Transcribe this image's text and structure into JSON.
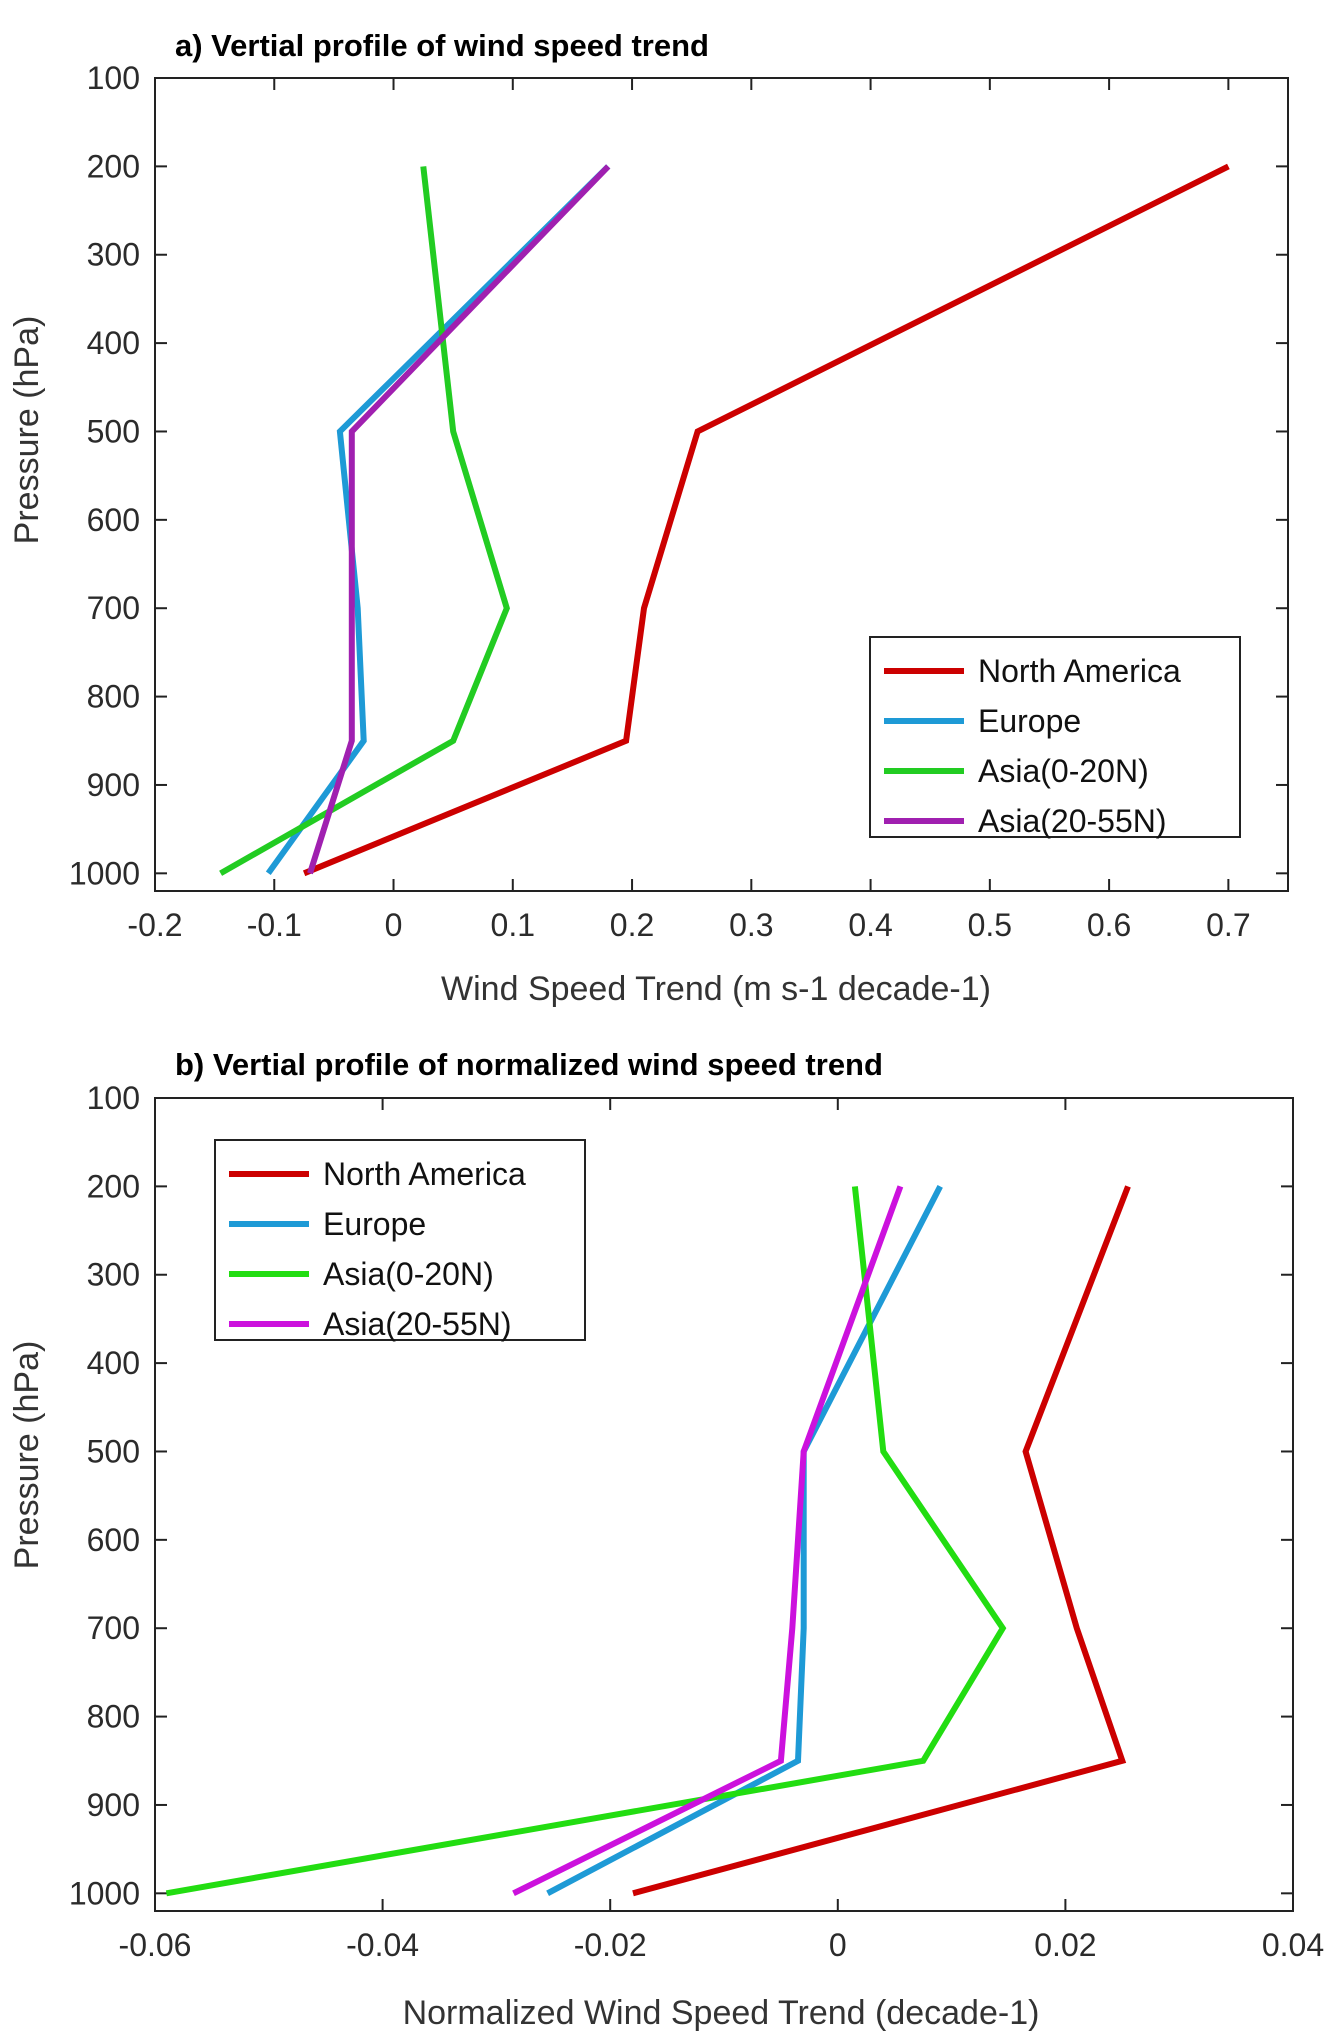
{
  "chart_data": [
    {
      "type": "line",
      "title": "a) Vertial profile of wind speed trend",
      "xlabel": "Wind Speed Trend (m s-1 decade-1)",
      "ylabel": "Pressure (hPa)",
      "xlim": [
        -0.2,
        0.75
      ],
      "ylim": [
        100,
        1020
      ],
      "y_reversed": true,
      "xticks": [
        -0.2,
        -0.1,
        0,
        0.1,
        0.2,
        0.3,
        0.4,
        0.5,
        0.6,
        0.7
      ],
      "xtick_labels": [
        "-0.2",
        "-0.1",
        "0",
        "0.1",
        "0.2",
        "0.3",
        "0.4",
        "0.5",
        "0.6",
        "0.7"
      ],
      "yticks": [
        100,
        200,
        300,
        400,
        500,
        600,
        700,
        800,
        900,
        1000
      ],
      "ytick_labels": [
        "100",
        "200",
        "300",
        "400",
        "500",
        "600",
        "700",
        "800",
        "900",
        "1000"
      ],
      "legend_position": "bottom-right",
      "grid": false,
      "levels": [
        1000,
        850,
        700,
        500,
        200
      ],
      "series": [
        {
          "name": "North America",
          "color": "#cc0000",
          "x": [
            -0.075,
            0.195,
            0.21,
            0.255,
            0.7
          ]
        },
        {
          "name": "Europe",
          "color": "#1e9ad6",
          "x": [
            -0.105,
            -0.025,
            -0.03,
            -0.045,
            0.18
          ]
        },
        {
          "name": "Asia(0-20N)",
          "color": "#22cc22",
          "x": [
            -0.145,
            0.05,
            0.095,
            0.05,
            0.025
          ]
        },
        {
          "name": "Asia(20-55N)",
          "color": "#a020b0",
          "x": [
            -0.07,
            -0.035,
            -0.035,
            -0.035,
            0.18
          ]
        }
      ]
    },
    {
      "type": "line",
      "title": "b) Vertial profile of normalized wind speed trend",
      "xlabel": "Normalized Wind Speed Trend (decade-1)",
      "ylabel": "Pressure (hPa)",
      "xlim": [
        -0.06,
        0.04
      ],
      "ylim": [
        100,
        1020
      ],
      "y_reversed": true,
      "xticks": [
        -0.06,
        -0.04,
        -0.02,
        0,
        0.02,
        0.04
      ],
      "xtick_labels": [
        "-0.06",
        "-0.04",
        "-0.02",
        "0",
        "0.02",
        "0.04"
      ],
      "yticks": [
        100,
        200,
        300,
        400,
        500,
        600,
        700,
        800,
        900,
        1000
      ],
      "ytick_labels": [
        "100",
        "200",
        "300",
        "400",
        "500",
        "600",
        "700",
        "800",
        "900",
        "1000"
      ],
      "legend_position": "top-left",
      "grid": false,
      "levels": [
        1000,
        850,
        700,
        500,
        200
      ],
      "series": [
        {
          "name": "North America",
          "color": "#cc0000",
          "x": [
            -0.018,
            0.025,
            0.021,
            0.0165,
            0.0255
          ]
        },
        {
          "name": "Europe",
          "color": "#1e9ad6",
          "x": [
            -0.0255,
            -0.0035,
            -0.003,
            -0.003,
            0.009
          ]
        },
        {
          "name": "Asia(0-20N)",
          "color": "#22dd11",
          "x": [
            -0.059,
            0.0075,
            0.0145,
            0.004,
            0.0015
          ]
        },
        {
          "name": "Asia(20-55N)",
          "color": "#cc11dd",
          "x": [
            -0.0285,
            -0.005,
            -0.004,
            -0.003,
            0.0055
          ]
        }
      ]
    }
  ]
}
